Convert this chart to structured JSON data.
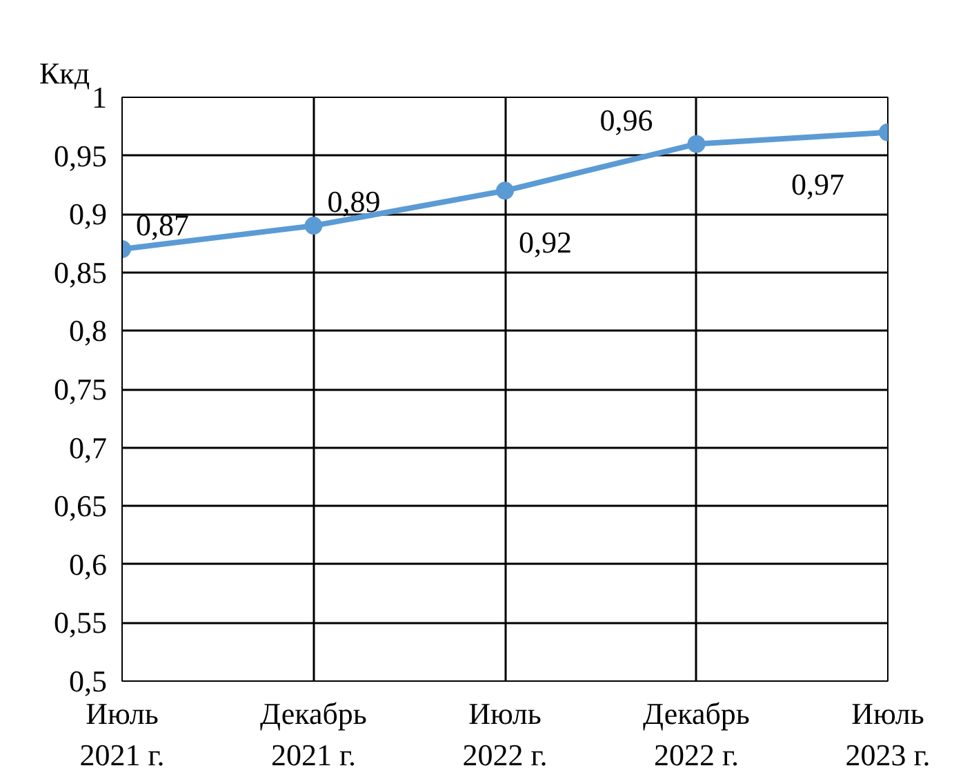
{
  "chart_data": {
    "type": "line",
    "ylabel": "Ккд",
    "categories": [
      "Июль\n2021 г.",
      "Декабрь\n2021 г.",
      "Июль\n2022 г.",
      "Декабрь\n2022 г.",
      "Июль\n2023 г."
    ],
    "series": [
      {
        "color": "#5b9bd5",
        "values": [
          0.87,
          0.89,
          0.92,
          0.96,
          0.97
        ]
      }
    ],
    "ylim": [
      0.5,
      1
    ],
    "yticks": [
      {
        "value": 0.5,
        "label": "0,5"
      },
      {
        "value": 0.55,
        "label": "0,55"
      },
      {
        "value": 0.6,
        "label": "0,6"
      },
      {
        "value": 0.65,
        "label": "0,65"
      },
      {
        "value": 0.7,
        "label": "0,7"
      },
      {
        "value": 0.75,
        "label": "0,75"
      },
      {
        "value": 0.8,
        "label": "0,8"
      },
      {
        "value": 0.85,
        "label": "0,85"
      },
      {
        "value": 0.9,
        "label": "0,9"
      },
      {
        "value": 0.95,
        "label": "0,95"
      },
      {
        "value": 1,
        "label": "1"
      }
    ],
    "value_labels": [
      "0,87",
      "0,89",
      "0,92",
      "0,96",
      "0,97"
    ],
    "grid": true,
    "marker": "circle",
    "line_style": "solid"
  }
}
